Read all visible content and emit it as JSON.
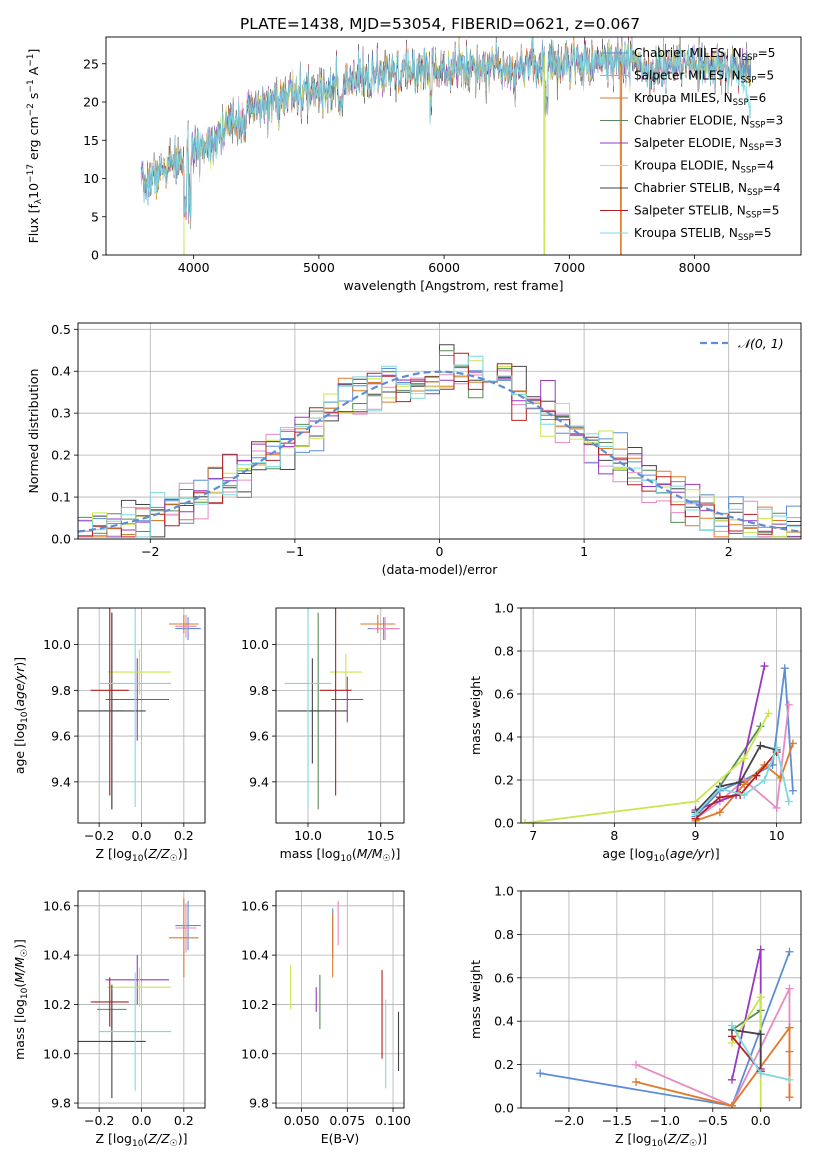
{
  "title": "PLATE=1438, MJD=53054, FIBERID=0621, z=0.067",
  "series": [
    {
      "name": "Chabrier MILES, N",
      "sub": "SSP",
      "tail": "=5",
      "color": "#5b8ed6"
    },
    {
      "name": "Salpeter MILES, N",
      "sub": "SSP",
      "tail": "=5",
      "color": "#e78ac3"
    },
    {
      "name": "Kroupa MILES, N",
      "sub": "SSP",
      "tail": "=6",
      "color": "#de7a2a"
    },
    {
      "name": "Chabrier ELODIE, N",
      "sub": "SSP",
      "tail": "=3",
      "color": "#5a8a5a"
    },
    {
      "name": "Salpeter ELODIE, N",
      "sub": "SSP",
      "tail": "=3",
      "color": "#9a37c0"
    },
    {
      "name": "Kroupa ELODIE, N",
      "sub": "SSP",
      "tail": "=4",
      "color": "#c9e64f"
    },
    {
      "name": "Chabrier STELIB, N",
      "sub": "SSP",
      "tail": "=4",
      "color": "#454545"
    },
    {
      "name": "Salpeter STELIB, N",
      "sub": "SSP",
      "tail": "=5",
      "color": "#b32020"
    },
    {
      "name": "Kroupa STELIB, N",
      "sub": "SSP",
      "tail": "=5",
      "color": "#7fd8df"
    }
  ],
  "chart_data": [
    {
      "id": "spectrum",
      "type": "line",
      "xlabel": "wavelength [Angstrom, rest frame]",
      "ylabel": "Flux [f_λ 10^-17 erg cm^-2 s^-1 A^-1]",
      "xlim": [
        3300,
        8850
      ],
      "ylim": [
        0,
        28.5
      ],
      "xticks": [
        4000,
        5000,
        6000,
        7000,
        8000
      ],
      "yticks": [
        0,
        5,
        10,
        15,
        20,
        25
      ],
      "grid": false,
      "legend": "right",
      "continuum_anchors": {
        "x": [
          3580,
          3750,
          3950,
          4100,
          4300,
          4500,
          4800,
          5000,
          5200,
          5500,
          6000,
          6500,
          7000,
          7400,
          7600,
          8000,
          8500
        ],
        "y": [
          9,
          11,
          13,
          14.5,
          17,
          19,
          21,
          21.5,
          22.5,
          23.5,
          24.5,
          24.8,
          25.2,
          25.5,
          25,
          24.6,
          24
        ]
      }
    },
    {
      "id": "residuals",
      "type": "histogram",
      "xlabel": "(data-model)/error",
      "ylabel": "Normed distribution",
      "xlim": [
        -2.5,
        2.5
      ],
      "ylim": [
        0,
        0.515
      ],
      "xticks": [
        -2,
        -1,
        0,
        1,
        2
      ],
      "yticks": [
        0,
        0.1,
        0.2,
        0.3,
        0.4,
        0.5
      ],
      "grid": true,
      "legend": "top-right",
      "reference_curve": {
        "name": "𝒩(0, 1)",
        "type": "gaussian",
        "mean": 0,
        "sigma": 1
      },
      "bin_width": 0.1,
      "bin_start": -2.5
    },
    {
      "id": "age-vs-Z",
      "type": "errorbar",
      "xlabel": "Z [log10(Z/Z☉)]",
      "ylabel": "age  [log10(age/yr)]",
      "xlim": [
        -0.3,
        0.3
      ],
      "ylim": [
        9.22,
        10.16
      ],
      "xticks": [
        -0.2,
        0,
        0.2
      ],
      "yticks": [
        9.4,
        9.6,
        9.8,
        10.0
      ],
      "grid": true,
      "points": [
        {
          "s": 0,
          "x": 0.22,
          "y": 10.07,
          "xerr": 0.06,
          "yerr": 0.05
        },
        {
          "s": 1,
          "x": 0.21,
          "y": 10.08,
          "xerr": 0.05,
          "yerr": 0.05
        },
        {
          "s": 2,
          "x": 0.2,
          "y": 10.09,
          "xerr": 0.07,
          "yerr": 0.04
        },
        {
          "s": 3,
          "x": -0.14,
          "y": 9.71,
          "xerr": 0.06,
          "yerr": 0.43
        },
        {
          "s": 4,
          "x": -0.02,
          "y": 9.76,
          "xerr": 0.15,
          "yerr": 0.18
        },
        {
          "s": 5,
          "x": -0.01,
          "y": 9.88,
          "xerr": 0.15,
          "yerr": 0.1
        },
        {
          "s": 6,
          "x": -0.14,
          "y": 9.71,
          "xerr": 0.16,
          "yerr": 0.43
        },
        {
          "s": 7,
          "x": -0.15,
          "y": 9.8,
          "xerr": 0.09,
          "yerr": 0.46
        },
        {
          "s": 8,
          "x": -0.03,
          "y": 9.83,
          "xerr": 0.17,
          "yerr": 0.54
        }
      ]
    },
    {
      "id": "age-vs-mass",
      "type": "errorbar",
      "xlabel": "mass [log10(M/M☉)]",
      "ylabel": "",
      "xlim": [
        9.78,
        10.66
      ],
      "ylim": [
        9.22,
        10.16
      ],
      "xticks": [
        10.0,
        10.5
      ],
      "yticks": [
        9.4,
        9.6,
        9.8,
        10.0
      ],
      "grid": true,
      "points": [
        {
          "s": 0,
          "x": 10.52,
          "y": 10.07,
          "xerr": 0.11,
          "yerr": 0.05
        },
        {
          "s": 1,
          "x": 10.53,
          "y": 10.07,
          "xerr": 0.1,
          "yerr": 0.05
        },
        {
          "s": 2,
          "x": 10.48,
          "y": 10.09,
          "xerr": 0.12,
          "yerr": 0.04
        },
        {
          "s": 3,
          "x": 10.07,
          "y": 9.71,
          "xerr": 0.08,
          "yerr": 0.43
        },
        {
          "s": 4,
          "x": 10.27,
          "y": 9.76,
          "xerr": 0.11,
          "yerr": 0.1
        },
        {
          "s": 5,
          "x": 10.26,
          "y": 9.88,
          "xerr": 0.11,
          "yerr": 0.08
        },
        {
          "s": 6,
          "x": 10.03,
          "y": 9.71,
          "xerr": 0.24,
          "yerr": 0.23
        },
        {
          "s": 7,
          "x": 10.19,
          "y": 9.8,
          "xerr": 0.11,
          "yerr": 0.46
        },
        {
          "s": 8,
          "x": 10.0,
          "y": 9.83,
          "xerr": 0.16,
          "yerr": 0.54
        }
      ]
    },
    {
      "id": "massweight-vs-age",
      "type": "line",
      "xlabel": "age  [log10(age/yr)]",
      "ylabel": "mass weight",
      "xlim": [
        6.85,
        10.3
      ],
      "ylim": [
        0,
        1.0
      ],
      "xticks": [
        7,
        8,
        9,
        10
      ],
      "yticks": [
        0.0,
        0.2,
        0.4,
        0.6,
        0.8,
        1.0
      ],
      "grid": true,
      "lines": [
        {
          "s": 0,
          "x": [
            9.0,
            9.3,
            9.6,
            9.95,
            10.1,
            10.2
          ],
          "y": [
            0.03,
            0.15,
            0.2,
            0.27,
            0.72,
            0.15
          ]
        },
        {
          "s": 1,
          "x": [
            9.0,
            9.3,
            9.6,
            10.0,
            10.15
          ],
          "y": [
            0.02,
            0.1,
            0.2,
            0.07,
            0.55
          ]
        },
        {
          "s": 2,
          "x": [
            9.0,
            9.3,
            9.6,
            9.85,
            10.05,
            10.2
          ],
          "y": [
            0.01,
            0.05,
            0.18,
            0.27,
            0.21,
            0.37
          ]
        },
        {
          "s": 3,
          "x": [
            9.0,
            9.3,
            9.8
          ],
          "y": [
            0.05,
            0.17,
            0.45
          ]
        },
        {
          "s": 4,
          "x": [
            9.0,
            9.5,
            9.85
          ],
          "y": [
            0.06,
            0.13,
            0.73
          ]
        },
        {
          "s": 5,
          "x": [
            6.9,
            9.0,
            9.6,
            9.9
          ],
          "y": [
            0.0,
            0.1,
            0.3,
            0.51
          ]
        },
        {
          "s": 6,
          "x": [
            9.0,
            9.3,
            9.55,
            9.8,
            10.0
          ],
          "y": [
            0.05,
            0.17,
            0.19,
            0.36,
            0.34
          ]
        },
        {
          "s": 7,
          "x": [
            9.0,
            9.3,
            9.55,
            9.75,
            10.0
          ],
          "y": [
            0.02,
            0.12,
            0.13,
            0.22,
            0.33
          ]
        },
        {
          "s": 8,
          "x": [
            9.0,
            9.3,
            9.6,
            9.85,
            10.0,
            10.15
          ],
          "y": [
            0.04,
            0.16,
            0.13,
            0.2,
            0.35,
            0.1
          ]
        }
      ]
    },
    {
      "id": "mass-vs-Z",
      "type": "errorbar",
      "xlabel": "Z [log10(Z/Z☉)]",
      "ylabel": "mass [log10(M/M☉)]",
      "xlim": [
        -0.3,
        0.3
      ],
      "ylim": [
        9.78,
        10.66
      ],
      "xticks": [
        -0.2,
        0,
        0.2
      ],
      "yticks": [
        9.8,
        10.0,
        10.2,
        10.4,
        10.6
      ],
      "grid": true,
      "points": [
        {
          "s": 0,
          "x": 0.22,
          "y": 10.52,
          "xerr": 0.06,
          "yerr": 0.1
        },
        {
          "s": 1,
          "x": 0.21,
          "y": 10.51,
          "xerr": 0.05,
          "yerr": 0.1
        },
        {
          "s": 2,
          "x": 0.2,
          "y": 10.47,
          "xerr": 0.07,
          "yerr": 0.16
        },
        {
          "s": 3,
          "x": -0.14,
          "y": 10.18,
          "xerr": 0.07,
          "yerr": 0.08
        },
        {
          "s": 4,
          "x": -0.02,
          "y": 10.3,
          "xerr": 0.15,
          "yerr": 0.1
        },
        {
          "s": 5,
          "x": -0.01,
          "y": 10.27,
          "xerr": 0.15,
          "yerr": 0.08
        },
        {
          "s": 6,
          "x": -0.14,
          "y": 10.05,
          "xerr": 0.16,
          "yerr": 0.23
        },
        {
          "s": 7,
          "x": -0.15,
          "y": 10.21,
          "xerr": 0.09,
          "yerr": 0.1
        },
        {
          "s": 8,
          "x": -0.03,
          "y": 10.09,
          "xerr": 0.17,
          "yerr": 0.24
        }
      ]
    },
    {
      "id": "mass-vs-EBV",
      "type": "errorbar",
      "xlabel": "E(B-V)",
      "ylabel": "",
      "xlim": [
        0.036,
        0.106
      ],
      "ylim": [
        9.78,
        10.66
      ],
      "xticks": [
        0.05,
        0.075,
        0.1
      ],
      "xticklabels": [
        "0.050",
        "0.075",
        "0.100"
      ],
      "yticks": [
        9.8,
        10.0,
        10.2,
        10.4,
        10.6
      ],
      "grid": true,
      "points": [
        {
          "s": 0,
          "x": 0.067,
          "y": 10.49,
          "xerr": 0,
          "yerr": 0.1
        },
        {
          "s": 1,
          "x": 0.07,
          "y": 10.53,
          "xerr": 0,
          "yerr": 0.09
        },
        {
          "s": 2,
          "x": 0.067,
          "y": 10.44,
          "xerr": 0,
          "yerr": 0.13
        },
        {
          "s": 3,
          "x": 0.06,
          "y": 10.21,
          "xerr": 0,
          "yerr": 0.11
        },
        {
          "s": 4,
          "x": 0.058,
          "y": 10.22,
          "xerr": 0,
          "yerr": 0.05
        },
        {
          "s": 5,
          "x": 0.044,
          "y": 10.27,
          "xerr": 0,
          "yerr": 0.09
        },
        {
          "s": 6,
          "x": 0.103,
          "y": 10.05,
          "xerr": 0,
          "yerr": 0.12
        },
        {
          "s": 7,
          "x": 0.094,
          "y": 10.16,
          "xerr": 0,
          "yerr": 0.18
        },
        {
          "s": 8,
          "x": 0.096,
          "y": 10.04,
          "xerr": 0,
          "yerr": 0.18
        }
      ]
    },
    {
      "id": "massweight-vs-Z",
      "type": "line",
      "xlabel": "Z [log10(Z/Z☉)]",
      "ylabel": "mass weight",
      "xlim": [
        -2.5,
        0.42
      ],
      "ylim": [
        0,
        1.0
      ],
      "xticks": [
        -2.0,
        -1.5,
        -1.0,
        -0.5,
        0.0
      ],
      "yticks": [
        0.0,
        0.2,
        0.4,
        0.6,
        0.8,
        1.0
      ],
      "grid": true,
      "lines": [
        {
          "s": 0,
          "x": [
            -2.3,
            -0.3,
            0.3
          ],
          "y": [
            0.16,
            0.01,
            0.72
          ]
        },
        {
          "s": 1,
          "x": [
            -1.3,
            -0.3,
            0.3,
            0.3
          ],
          "y": [
            0.2,
            0.01,
            0.55,
            0.05
          ]
        },
        {
          "s": 2,
          "x": [
            -1.3,
            -0.3,
            0.3,
            0.3,
            0.3
          ],
          "y": [
            0.12,
            0.01,
            0.37,
            0.26,
            0.05
          ]
        },
        {
          "s": 3,
          "x": [
            -0.3,
            0.0
          ],
          "y": [
            0.36,
            0.45
          ]
        },
        {
          "s": 4,
          "x": [
            -0.3,
            0.0,
            0.0
          ],
          "y": [
            0.13,
            0.73,
            0.18
          ]
        },
        {
          "s": 5,
          "x": [
            -0.3,
            0.0,
            0.0
          ],
          "y": [
            0.3,
            0.51,
            0.0
          ]
        },
        {
          "s": 6,
          "x": [
            -0.3,
            0.0,
            0.0
          ],
          "y": [
            0.36,
            0.34,
            0.17
          ]
        },
        {
          "s": 7,
          "x": [
            -0.3,
            0.0
          ],
          "y": [
            0.33,
            0.17
          ]
        },
        {
          "s": 8,
          "x": [
            -0.3,
            0.0,
            0.3
          ],
          "y": [
            0.38,
            0.16,
            0.13
          ]
        }
      ]
    }
  ]
}
